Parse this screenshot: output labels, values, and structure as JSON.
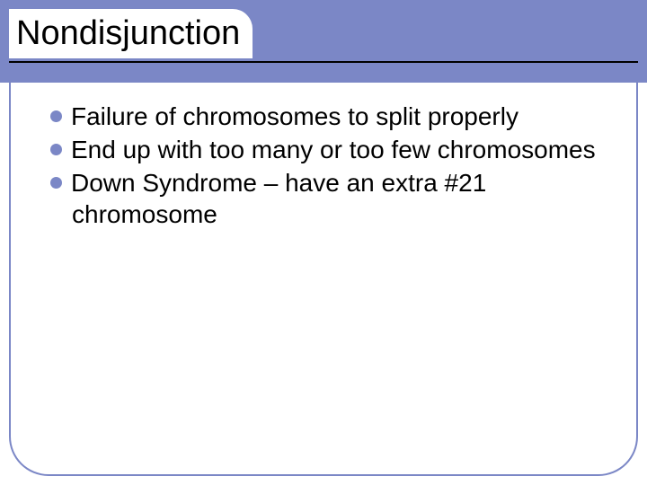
{
  "slide": {
    "title": "Nondisjunction",
    "title_fontsize": 38,
    "title_color": "#000000",
    "header_band_color": "#7b87c6",
    "underline_color": "#000000",
    "content_border_color": "#7b87c6",
    "content_border_radius": 44,
    "background_color": "#ffffff",
    "bullets": [
      {
        "text": "Failure of chromosomes to split properly"
      },
      {
        "text": "End up with too many or too few chromosomes"
      },
      {
        "text": "Down Syndrome – have an extra #21 chromosome"
      }
    ],
    "bullet_color": "#7b87c6",
    "bullet_fontsize": 28,
    "bullet_text_color": "#000000"
  }
}
